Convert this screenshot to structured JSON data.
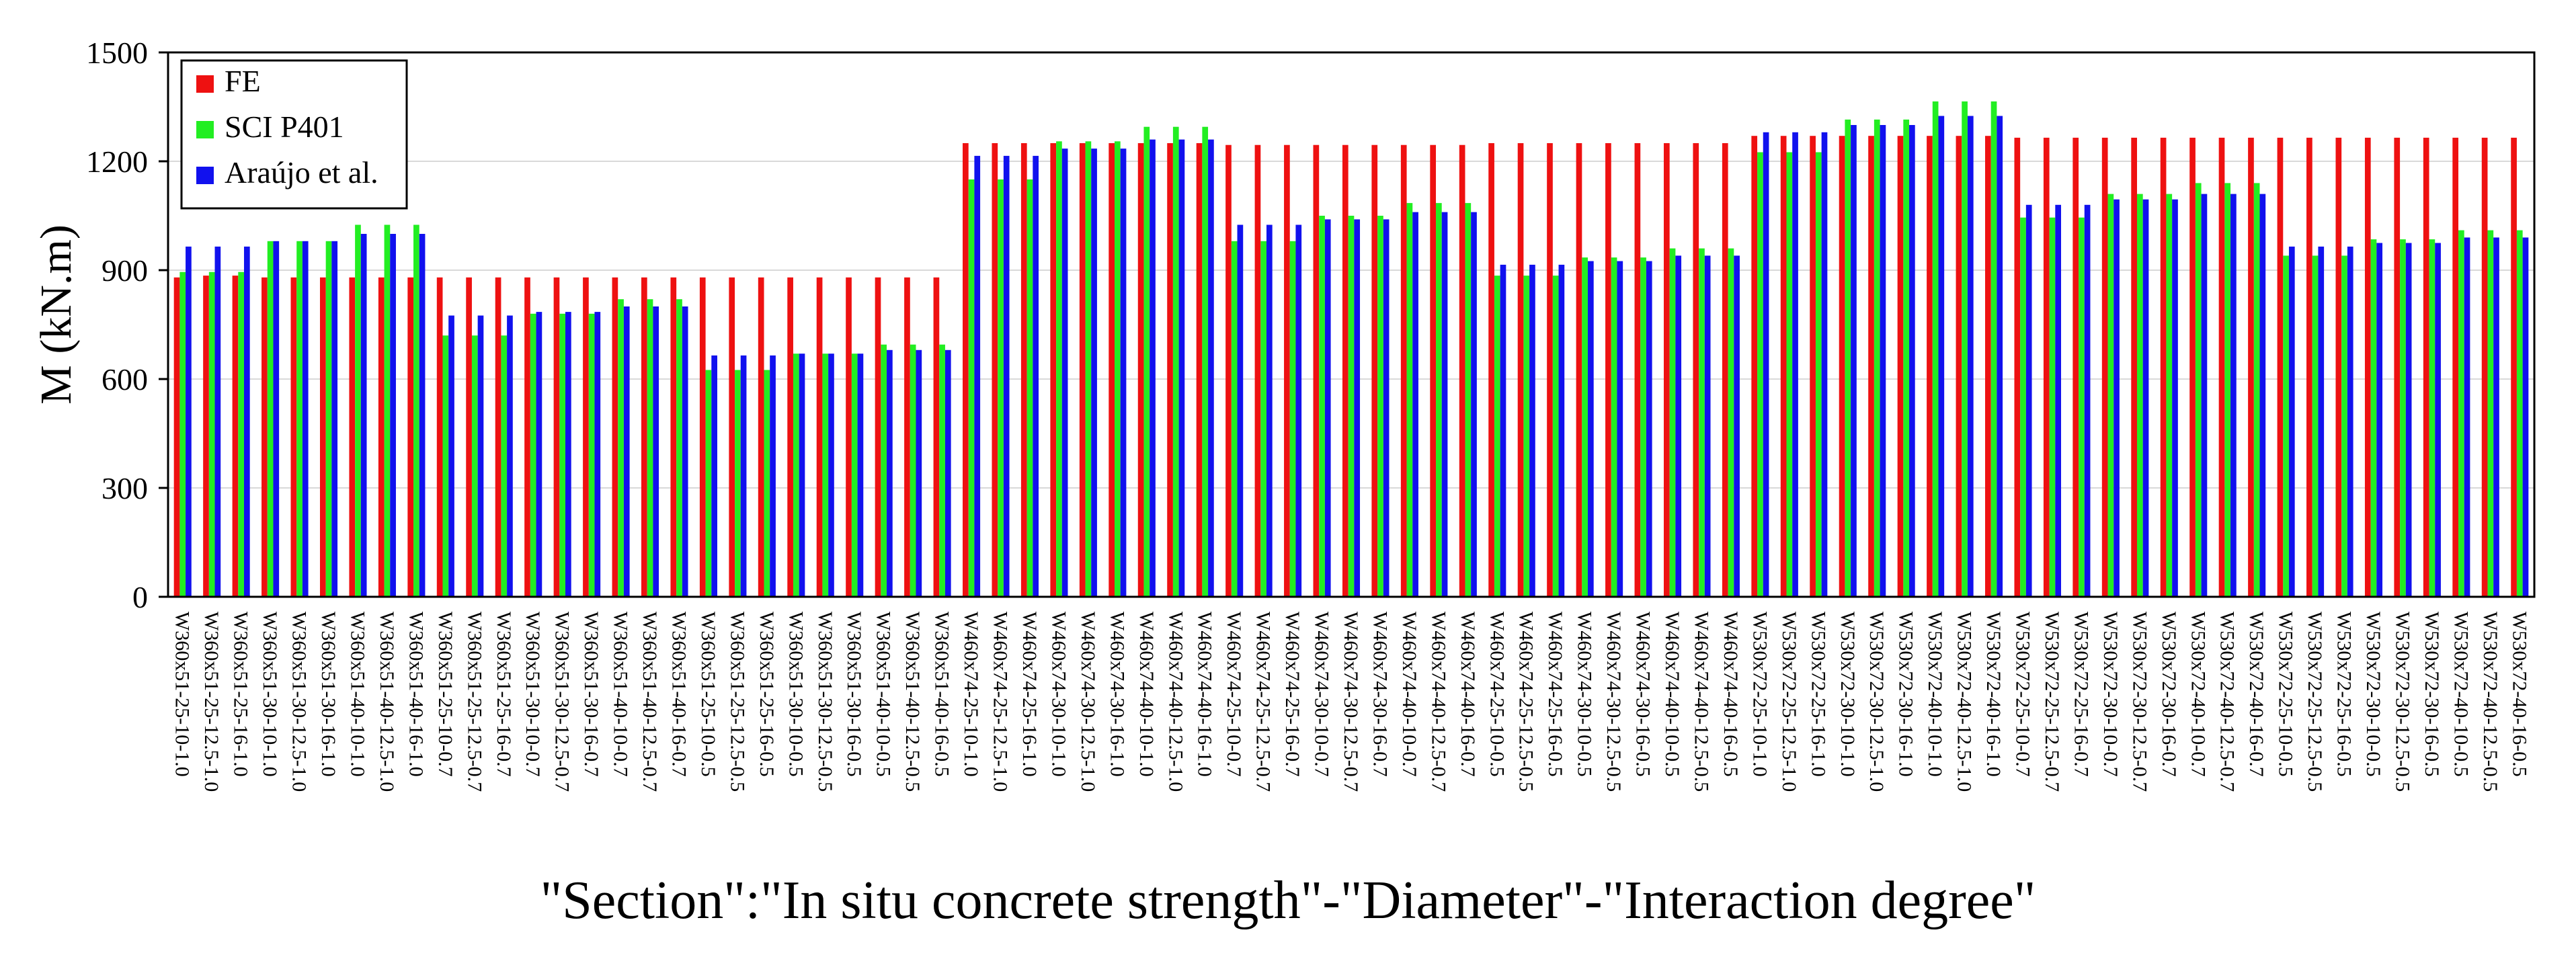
{
  "chart_data": {
    "type": "bar",
    "title": "",
    "xlabel": "\"Section\":\"In situ concrete strength\"-\"Diameter\"-\"Interaction degree\"",
    "ylabel": "M (kN.m)",
    "ylim": [
      0,
      1500
    ],
    "yticks": [
      "0",
      "300",
      "600",
      "900",
      "1200",
      "1500"
    ],
    "grid": true,
    "legend_position": "top-left",
    "categories": [
      "W360x51-25-10-1.0",
      "W360x51-25-12.5-1.0",
      "W360x51-25-16-1.0",
      "W360x51-30-10-1.0",
      "W360x51-30-12.5-1.0",
      "W360x51-30-16-1.0",
      "W360x51-40-10-1.0",
      "W360x51-40-12.5-1.0",
      "W360x51-40-16-1.0",
      "W360x51-25-10-0.7",
      "W360x51-25-12.5-0.7",
      "W360x51-25-16-0.7",
      "W360x51-30-10-0.7",
      "W360x51-30-12.5-0.7",
      "W360x51-30-16-0.7",
      "W360x51-40-10-0.7",
      "W360x51-40-12.5-0.7",
      "W360x51-40-16-0.7",
      "W360x51-25-10-0.5",
      "W360x51-25-12.5-0.5",
      "W360x51-25-16-0.5",
      "W360x51-30-10-0.5",
      "W360x51-30-12.5-0.5",
      "W360x51-30-16-0.5",
      "W360x51-40-10-0.5",
      "W360x51-40-12.5-0.5",
      "W360x51-40-16-0.5",
      "W460x74-25-10-1.0",
      "W460x74-25-12.5-1.0",
      "W460x74-25-16-1.0",
      "W460x74-30-10-1.0",
      "W460x74-30-12.5-1.0",
      "W460x74-30-16-1.0",
      "W460x74-40-10-1.0",
      "W460x74-40-12.5-1.0",
      "W460x74-40-16-1.0",
      "W460x74-25-10-0.7",
      "W460x74-25-12.5-0.7",
      "W460x74-25-16-0.7",
      "W460x74-30-10-0.7",
      "W460x74-30-12.5-0.7",
      "W460x74-30-16-0.7",
      "W460x74-40-10-0.7",
      "W460x74-40-12.5-0.7",
      "W460x74-40-16-0.7",
      "W460x74-25-10-0.5",
      "W460x74-25-12.5-0.5",
      "W460x74-25-16-0.5",
      "W460x74-30-10-0.5",
      "W460x74-30-12.5-0.5",
      "W460x74-30-16-0.5",
      "W460x74-40-10-0.5",
      "W460x74-40-12.5-0.5",
      "W460x74-40-16-0.5",
      "W530x72-25-10-1.0",
      "W530x72-25-12.5-1.0",
      "W530x72-25-16-1.0",
      "W530x72-30-10-1.0",
      "W530x72-30-12.5-1.0",
      "W530x72-30-16-1.0",
      "W530x72-40-10-1.0",
      "W530x72-40-12.5-1.0",
      "W530x72-40-16-1.0",
      "W530x72-25-10-0.7",
      "W530x72-25-12.5-0.7",
      "W530x72-25-16-0.7",
      "W530x72-30-10-0.7",
      "W530x72-30-12.5-0.7",
      "W530x72-30-16-0.7",
      "W530x72-40-10-0.7",
      "W530x72-40-12.5-0.7",
      "W530x72-40-16-0.7",
      "W530x72-25-10-0.5",
      "W530x72-25-12.5-0.5",
      "W530x72-25-16-0.5",
      "W530x72-30-10-0.5",
      "W530x72-30-12.5-0.5",
      "W530x72-30-16-0.5",
      "W530x72-40-10-0.5",
      "W530x72-40-12.5-0.5",
      "W530x72-40-16-0.5"
    ],
    "series": [
      {
        "name": "FE",
        "color": "#ee1111",
        "values": [
          880,
          885,
          885,
          880,
          880,
          880,
          880,
          880,
          880,
          880,
          880,
          880,
          880,
          880,
          880,
          880,
          880,
          880,
          880,
          880,
          880,
          880,
          880,
          880,
          880,
          880,
          880,
          1250,
          1250,
          1250,
          1250,
          1250,
          1250,
          1250,
          1250,
          1250,
          1245,
          1245,
          1245,
          1245,
          1245,
          1245,
          1245,
          1245,
          1245,
          1250,
          1250,
          1250,
          1250,
          1250,
          1250,
          1250,
          1250,
          1250,
          1270,
          1270,
          1270,
          1270,
          1270,
          1270,
          1270,
          1270,
          1270,
          1265,
          1265,
          1265,
          1265,
          1265,
          1265,
          1265,
          1265,
          1265,
          1265,
          1265,
          1265,
          1265,
          1265,
          1265,
          1265,
          1265,
          1265
        ]
      },
      {
        "name": "SCI P401",
        "color": "#22ee22",
        "values": [
          895,
          895,
          895,
          980,
          980,
          980,
          1025,
          1025,
          1025,
          720,
          720,
          720,
          780,
          780,
          780,
          820,
          820,
          820,
          625,
          625,
          625,
          670,
          670,
          670,
          695,
          695,
          695,
          1150,
          1150,
          1150,
          1255,
          1255,
          1255,
          1295,
          1295,
          1295,
          980,
          980,
          980,
          1050,
          1050,
          1050,
          1085,
          1085,
          1085,
          885,
          885,
          885,
          935,
          935,
          935,
          960,
          960,
          960,
          1225,
          1225,
          1225,
          1315,
          1315,
          1315,
          1365,
          1365,
          1365,
          1045,
          1045,
          1045,
          1110,
          1110,
          1110,
          1140,
          1140,
          1140,
          940,
          940,
          940,
          985,
          985,
          985,
          1010,
          1010,
          1010
        ]
      },
      {
        "name": "Araújo et al.",
        "color": "#1111ee",
        "values": [
          965,
          965,
          965,
          980,
          980,
          980,
          1000,
          1000,
          1000,
          775,
          775,
          775,
          785,
          785,
          785,
          800,
          800,
          800,
          665,
          665,
          665,
          670,
          670,
          670,
          680,
          680,
          680,
          1215,
          1215,
          1215,
          1235,
          1235,
          1235,
          1260,
          1260,
          1260,
          1025,
          1025,
          1025,
          1040,
          1040,
          1040,
          1060,
          1060,
          1060,
          915,
          915,
          915,
          925,
          925,
          925,
          940,
          940,
          940,
          1280,
          1280,
          1280,
          1300,
          1300,
          1300,
          1325,
          1325,
          1325,
          1080,
          1080,
          1080,
          1095,
          1095,
          1095,
          1110,
          1110,
          1110,
          965,
          965,
          965,
          975,
          975,
          975,
          990,
          990,
          990
        ]
      }
    ]
  }
}
